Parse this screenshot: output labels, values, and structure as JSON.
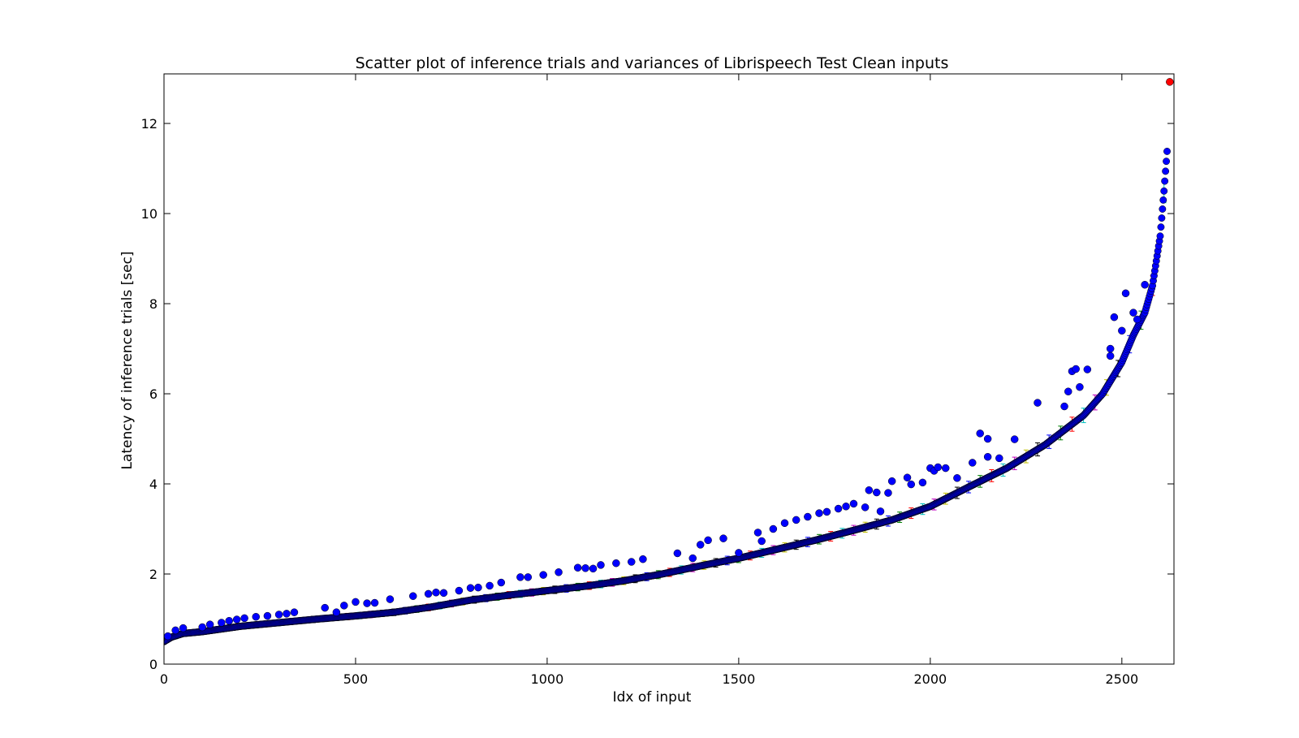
{
  "chart_data": {
    "type": "scatter",
    "title": "Scatter plot of inference trials and variances of Librispeech Test Clean inputs",
    "xlabel": "Idx of input",
    "ylabel": "Latency of inference trials [sec]",
    "xlim": [
      0,
      2636
    ],
    "ylim": [
      0,
      13.1
    ],
    "xticks": [
      0,
      500,
      1000,
      1500,
      2000,
      2500
    ],
    "yticks": [
      0,
      2,
      4,
      6,
      8,
      10,
      12
    ],
    "grid": false,
    "legend": "none",
    "n_inputs": 2620,
    "colors": {
      "trial_points": "#0000ff",
      "point_edge": "#000000",
      "max_point": "#ff0000",
      "errorbar_palette": [
        "#0000ff",
        "#008000",
        "#ff0000",
        "#00bfbf",
        "#bf00bf",
        "#bfbf00",
        "#000000"
      ]
    },
    "trend_curve": [
      [
        0,
        0.5
      ],
      [
        20,
        0.6
      ],
      [
        50,
        0.68
      ],
      [
        100,
        0.72
      ],
      [
        200,
        0.84
      ],
      [
        300,
        0.92
      ],
      [
        400,
        1.0
      ],
      [
        500,
        1.07
      ],
      [
        600,
        1.15
      ],
      [
        700,
        1.27
      ],
      [
        800,
        1.42
      ],
      [
        900,
        1.53
      ],
      [
        1000,
        1.63
      ],
      [
        1100,
        1.73
      ],
      [
        1200,
        1.85
      ],
      [
        1300,
        2.0
      ],
      [
        1400,
        2.18
      ],
      [
        1500,
        2.35
      ],
      [
        1600,
        2.55
      ],
      [
        1700,
        2.75
      ],
      [
        1800,
        2.97
      ],
      [
        1900,
        3.2
      ],
      [
        2000,
        3.5
      ],
      [
        2100,
        3.93
      ],
      [
        2200,
        4.35
      ],
      [
        2300,
        4.87
      ],
      [
        2400,
        5.52
      ],
      [
        2450,
        6.0
      ],
      [
        2500,
        6.7
      ],
      [
        2530,
        7.3
      ],
      [
        2560,
        7.8
      ],
      [
        2580,
        8.4
      ],
      [
        2600,
        9.5
      ],
      [
        2610,
        10.5
      ],
      [
        2620,
        11.6
      ],
      [
        2625,
        12.85
      ]
    ],
    "outliers": [
      [
        10,
        0.62
      ],
      [
        30,
        0.75
      ],
      [
        50,
        0.8
      ],
      [
        100,
        0.82
      ],
      [
        120,
        0.88
      ],
      [
        150,
        0.92
      ],
      [
        170,
        0.96
      ],
      [
        190,
        0.99
      ],
      [
        210,
        1.02
      ],
      [
        240,
        1.05
      ],
      [
        270,
        1.07
      ],
      [
        300,
        1.1
      ],
      [
        320,
        1.12
      ],
      [
        340,
        1.15
      ],
      [
        420,
        1.25
      ],
      [
        450,
        1.15
      ],
      [
        470,
        1.3
      ],
      [
        500,
        1.38
      ],
      [
        530,
        1.35
      ],
      [
        550,
        1.36
      ],
      [
        590,
        1.44
      ],
      [
        650,
        1.51
      ],
      [
        690,
        1.56
      ],
      [
        710,
        1.59
      ],
      [
        730,
        1.58
      ],
      [
        770,
        1.63
      ],
      [
        800,
        1.69
      ],
      [
        820,
        1.7
      ],
      [
        850,
        1.74
      ],
      [
        880,
        1.81
      ],
      [
        930,
        1.93
      ],
      [
        950,
        1.93
      ],
      [
        990,
        1.98
      ],
      [
        1030,
        2.04
      ],
      [
        1080,
        2.14
      ],
      [
        1100,
        2.13
      ],
      [
        1120,
        2.12
      ],
      [
        1140,
        2.2
      ],
      [
        1180,
        2.24
      ],
      [
        1220,
        2.27
      ],
      [
        1250,
        2.33
      ],
      [
        1340,
        2.46
      ],
      [
        1380,
        2.35
      ],
      [
        1400,
        2.65
      ],
      [
        1420,
        2.75
      ],
      [
        1460,
        2.79
      ],
      [
        1500,
        2.47
      ],
      [
        1550,
        2.92
      ],
      [
        1560,
        2.73
      ],
      [
        1590,
        3.0
      ],
      [
        1620,
        3.13
      ],
      [
        1650,
        3.2
      ],
      [
        1680,
        3.27
      ],
      [
        1710,
        3.35
      ],
      [
        1730,
        3.38
      ],
      [
        1760,
        3.45
      ],
      [
        1780,
        3.5
      ],
      [
        1800,
        3.56
      ],
      [
        1830,
        3.48
      ],
      [
        1840,
        3.86
      ],
      [
        1860,
        3.81
      ],
      [
        1870,
        3.39
      ],
      [
        1890,
        3.8
      ],
      [
        1900,
        4.06
      ],
      [
        1940,
        4.14
      ],
      [
        1950,
        3.99
      ],
      [
        1980,
        4.03
      ],
      [
        2000,
        4.35
      ],
      [
        2010,
        4.29
      ],
      [
        2020,
        4.37
      ],
      [
        2040,
        4.35
      ],
      [
        2070,
        4.13
      ],
      [
        2110,
        4.47
      ],
      [
        2130,
        5.12
      ],
      [
        2150,
        5.0
      ],
      [
        2150,
        4.6
      ],
      [
        2180,
        4.57
      ],
      [
        2220,
        4.99
      ],
      [
        2280,
        5.8
      ],
      [
        2350,
        5.72
      ],
      [
        2360,
        6.05
      ],
      [
        2370,
        6.5
      ],
      [
        2380,
        6.55
      ],
      [
        2390,
        6.15
      ],
      [
        2410,
        6.54
      ],
      [
        2470,
        6.84
      ],
      [
        2470,
        7.0
      ],
      [
        2480,
        7.7
      ],
      [
        2500,
        7.4
      ],
      [
        2510,
        8.23
      ],
      [
        2530,
        7.8
      ],
      [
        2540,
        7.65
      ],
      [
        2560,
        8.42
      ]
    ]
  }
}
